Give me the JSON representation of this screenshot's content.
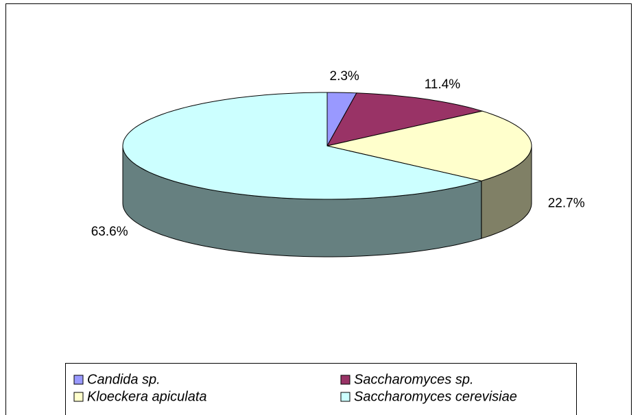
{
  "chart_data": {
    "type": "pie",
    "categories": [
      "Candida sp.",
      "Saccharomyces sp.",
      "Kloeckera apiculata",
      "Saccharomyces cerevisiae"
    ],
    "values": [
      2.3,
      11.4,
      22.7,
      63.6
    ],
    "value_labels": [
      "2.3%",
      "11.4%",
      "22.7%",
      "63.6%"
    ],
    "colors": [
      "#9999ff",
      "#993366",
      "#ffffcc",
      "#ccffff"
    ],
    "legend": "bottom"
  }
}
